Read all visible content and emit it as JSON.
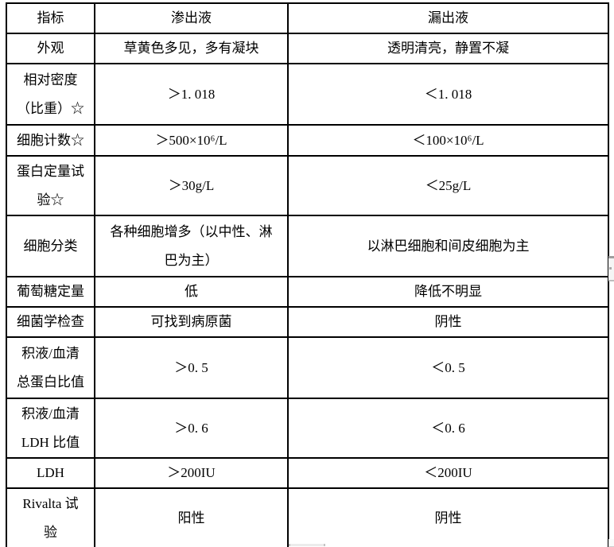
{
  "colors": {
    "background": "#ffffff",
    "border": "#000000",
    "text": "#000000"
  },
  "table": {
    "columns": [
      "指标",
      "渗出液",
      "漏出液"
    ],
    "rows": [
      {
        "indicator": "外观",
        "exudate": "草黄色多见，多有凝块",
        "transudate": "透明清亮，静置不凝"
      },
      {
        "indicator": "相对密度\n（比重）☆",
        "exudate": "＞1. 018",
        "transudate": "＜1. 018"
      },
      {
        "indicator": "细胞计数☆",
        "exudate": "＞500×10⁶/L",
        "transudate": "＜100×10⁶/L"
      },
      {
        "indicator": "蛋白定量试\n验☆",
        "exudate": "＞30g/L",
        "transudate": "＜25g/L"
      },
      {
        "indicator": "细胞分类",
        "exudate": "各种细胞增多（以中性、淋\n巴为主）",
        "transudate": "以淋巴细胞和间皮细胞为主"
      },
      {
        "indicator": "葡萄糖定量",
        "exudate": "低",
        "transudate": "降低不明显"
      },
      {
        "indicator": "细菌学检查",
        "exudate": "可找到病原菌",
        "transudate": "阴性"
      },
      {
        "indicator": "积液/血清\n总蛋白比值",
        "exudate": "＞0. 5",
        "transudate": "＜0. 5"
      },
      {
        "indicator": "积液/血清\nLDH 比值",
        "exudate": "＞0. 6",
        "transudate": "＜0. 6"
      },
      {
        "indicator": "LDH",
        "exudate": "＞200IU",
        "transudate": "＜200IU"
      },
      {
        "indicator": "Rivalta 试\n验",
        "exudate": "阳性",
        "transudate": "阴性"
      }
    ]
  }
}
